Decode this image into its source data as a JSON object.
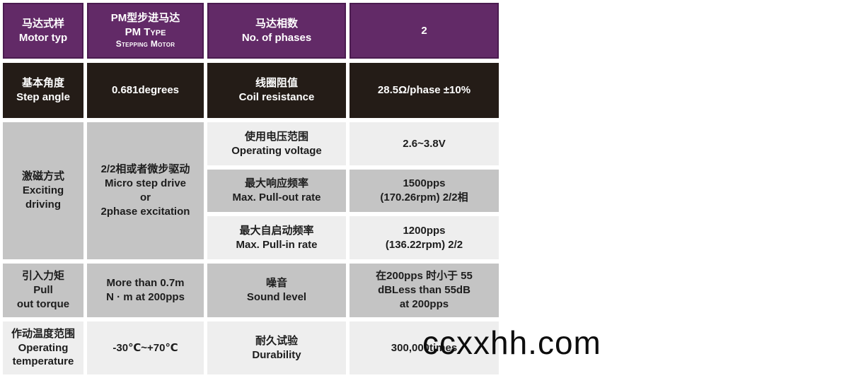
{
  "colors": {
    "header_purple": "#622a67",
    "header_purple_border": "#4b1c50",
    "dark_row": "#241c17",
    "gray_medium": "#c4c4c4",
    "gray_light": "#eeeeee",
    "text_on_gray": "#1d1d1d",
    "text_on_dark": "#ffffff",
    "page_background": "#ffffff"
  },
  "watermark": {
    "text": "ccxxhh.com"
  },
  "cells": {
    "motor_type_label": {
      "line1": "马达式样",
      "line2": "Motor typ"
    },
    "motor_type_value": {
      "line1": "PM型步进马达",
      "line2": "PM Type",
      "line3": "Stepping Motor"
    },
    "phases_label": {
      "line1": "马达相数",
      "line2": "No. of phases"
    },
    "phases_value": {
      "line1": "2"
    },
    "step_angle_label": {
      "line1": "基本角度",
      "line2": "Step angle"
    },
    "step_angle_value": {
      "line1": "0.681degrees"
    },
    "coil_label": {
      "line1": "线圈阻值",
      "line2": "Coil resistance"
    },
    "coil_value": {
      "line1": "28.5Ω/phase ±10%"
    },
    "exciting_label": {
      "line1": "激磁方式",
      "line2": "Exciting",
      "line3": "driving"
    },
    "exciting_value": {
      "line1": "2/2相或者微步驱动",
      "line2": "Micro step drive",
      "line3": "or",
      "line4": "2phase excitation"
    },
    "voltage_label": {
      "line1": "使用电压范围",
      "line2": "Operating voltage"
    },
    "voltage_value": {
      "line1": "2.6~3.8V"
    },
    "pullout_label": {
      "line1": "最大响应频率",
      "line2": "Max. Pull-out rate"
    },
    "pullout_value": {
      "line1": "1500pps",
      "line2": "(170.26rpm) 2/2相"
    },
    "pullin_label": {
      "line1": "最大自启动频率",
      "line2": "Max. Pull-in rate"
    },
    "pullin_value": {
      "line1": "1200pps",
      "line2": "(136.22rpm) 2/2"
    },
    "torque_label": {
      "line1": "引入力矩",
      "line2": "Pull",
      "line3": "out torque"
    },
    "torque_value": {
      "line1": "More than 0.7m",
      "line2": "N · m at 200pps"
    },
    "noise_label": {
      "line1": "噪音",
      "line2": "Sound level"
    },
    "noise_value": {
      "line1": "在200pps 时小于 55",
      "line2": "dBLess than 55dB",
      "line3": "at 200pps"
    },
    "temp_label": {
      "line1": "作动温度范围",
      "line2": "Operating",
      "line3": "temperature"
    },
    "temp_value": {
      "line1": "-30℃~+70℃"
    },
    "durability_label": {
      "line1": "耐久试验",
      "line2": "Durability"
    },
    "durability_value": {
      "line1": "300,000times"
    }
  }
}
